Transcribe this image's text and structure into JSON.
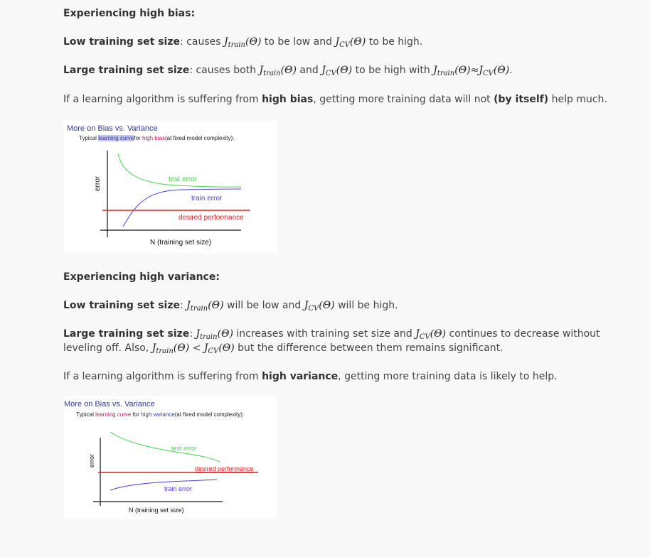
{
  "bias": {
    "heading": "Experiencing high bias:",
    "low": {
      "label": "Low training set size",
      "t1": ": causes ",
      "t2": " to be low and ",
      "t3": " to be high."
    },
    "large": {
      "label": "Large training set size",
      "t1": ": causes both ",
      "t2": " and ",
      "t3": " to be high with ",
      "approx": "≈",
      "t4": "."
    },
    "summary": {
      "t1": "If a learning algorithm is suffering from ",
      "b1": "high bias",
      "t2": ", getting more training data will not ",
      "b2": "(by itself)",
      "t3": " help much."
    }
  },
  "math": {
    "J": "J",
    "train": "train",
    "cv": "CV",
    "theta": "(Θ)"
  },
  "fig1": {
    "title": "More on Bias vs. Variance",
    "sub_pre": "Typical ",
    "sub_link": "learning curve",
    "sub_mid": "for ",
    "sub_red": "high bias",
    "sub_post": "(at fixed model complexity):",
    "ylabel": "error",
    "test": "test error",
    "train": "train error",
    "desired": "desired performance",
    "xlabel": "N (training set size)"
  },
  "variance": {
    "heading": "Experiencing high variance:",
    "low": {
      "label": "Low training set size",
      "t1": ": ",
      "t2": " will be low and ",
      "t3": " will be high."
    },
    "large": {
      "label": "Large training set size",
      "t1": ": ",
      "t2": " increases with training set size and ",
      "t3": " continues to decrease without",
      "line2_a": "leveling off. Also, ",
      "lt": " < ",
      "line2_b": " but the difference between them remains significant."
    },
    "summary": {
      "t1": "If a learning algorithm is suffering from ",
      "b1": "high variance",
      "t2": ", getting more training data is likely to help."
    }
  },
  "fig2": {
    "title": "More on Bias vs. Variance",
    "sub_pre": "Typical ",
    "sub_link": "learning curve",
    "sub_mid": " for ",
    "sub_red": "high variance",
    "sub_post": "(at fixed model complexity):",
    "ylabel": "error",
    "test": "test error",
    "desired": "desired performance",
    "train": "train error",
    "xlabel": "N (training set size)"
  },
  "colors": {
    "text": "#444444",
    "heading": "#333333",
    "fig_title": "#2f3c9c",
    "test_curve": "#3fdc3f",
    "train_curve": "#4b3ce0",
    "desired_line": "#e02020",
    "link_highlight": "#c9c6f0",
    "link_text": "#2f3c9c",
    "red_text": "#c2185b"
  }
}
